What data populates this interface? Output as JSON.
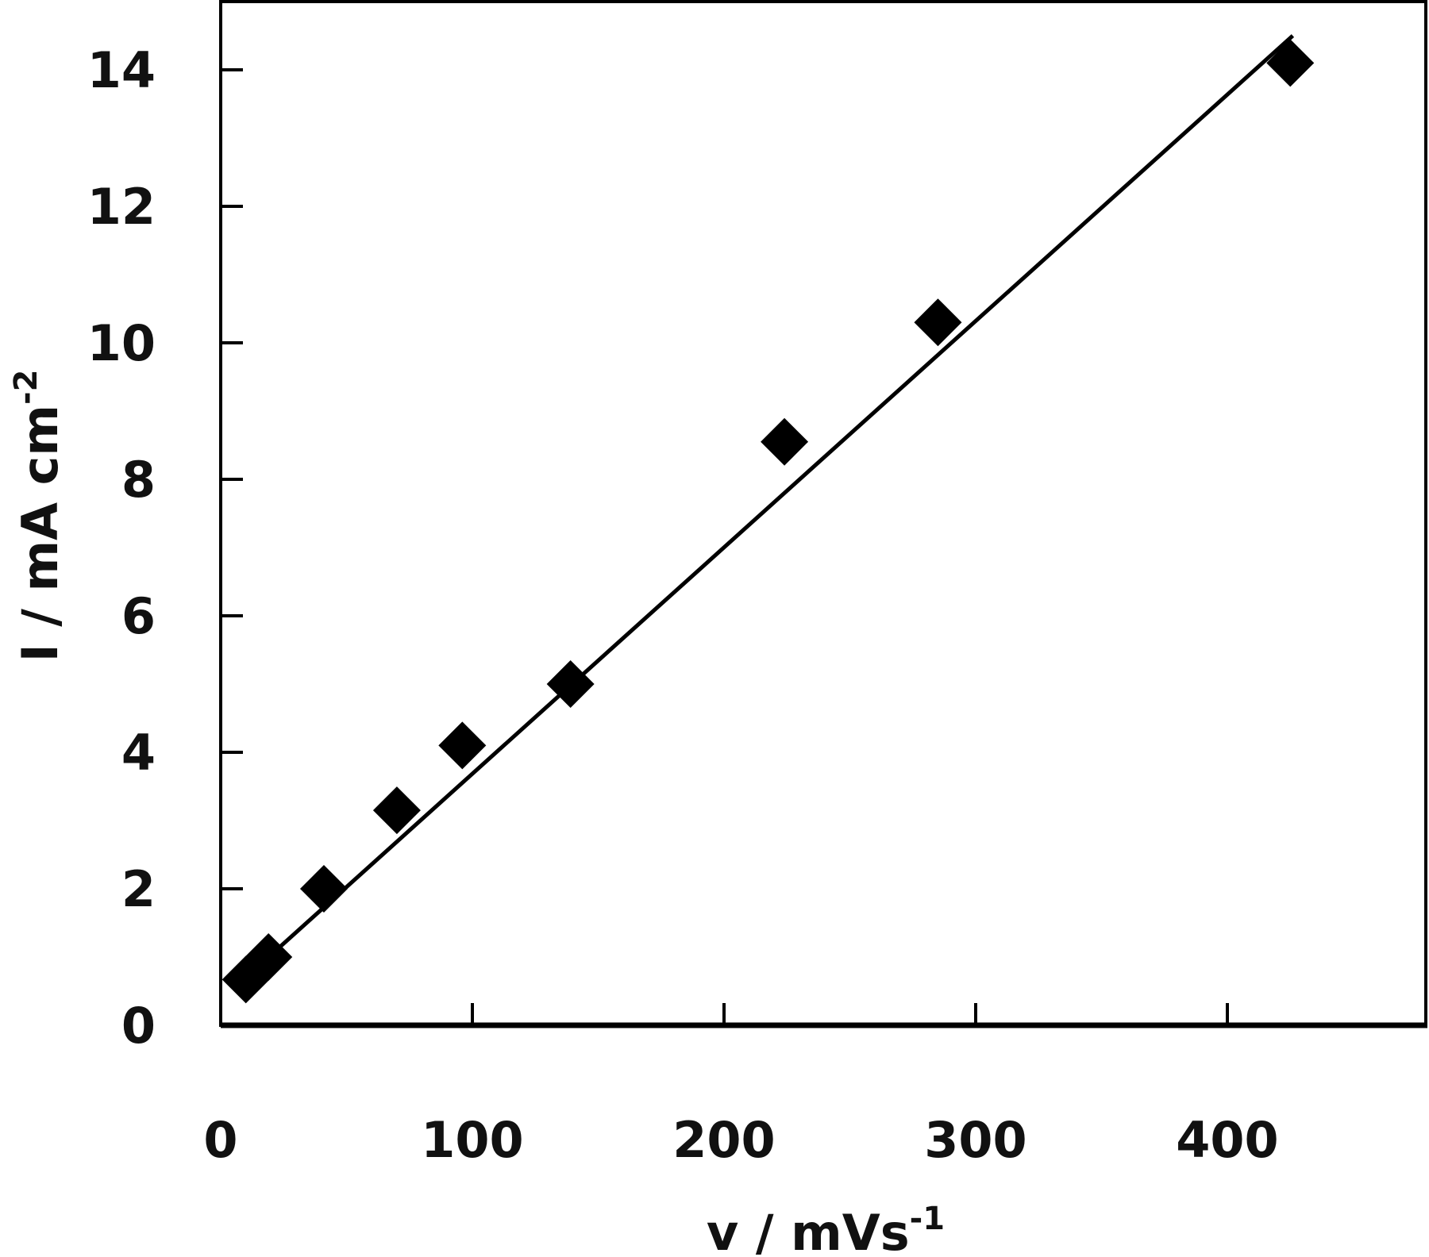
{
  "chart_data": {
    "type": "scatter",
    "title": "",
    "xlabel": "v / mVs",
    "xlabel_sup": "-1",
    "ylabel": "I / mA cm",
    "ylabel_sup": "-2",
    "xlim": [
      0,
      480
    ],
    "ylim": [
      0,
      15
    ],
    "xticks": [
      0,
      100,
      200,
      300,
      400
    ],
    "yticks": [
      0,
      2,
      4,
      6,
      8,
      10,
      12,
      14
    ],
    "grid": false,
    "marker": "diamond",
    "color": "#000000",
    "points": [
      {
        "x": 10,
        "y": 0.67
      },
      {
        "x": 19,
        "y": 1.0
      },
      {
        "x": 41,
        "y": 2.0
      },
      {
        "x": 70,
        "y": 3.15
      },
      {
        "x": 96,
        "y": 4.1
      },
      {
        "x": 139,
        "y": 5.0
      },
      {
        "x": 224,
        "y": 8.55
      },
      {
        "x": 285,
        "y": 10.3
      },
      {
        "x": 425,
        "y": 14.1
      }
    ],
    "fit_line": {
      "x": [
        7,
        426
      ],
      "y": [
        0.6,
        14.5
      ]
    }
  }
}
